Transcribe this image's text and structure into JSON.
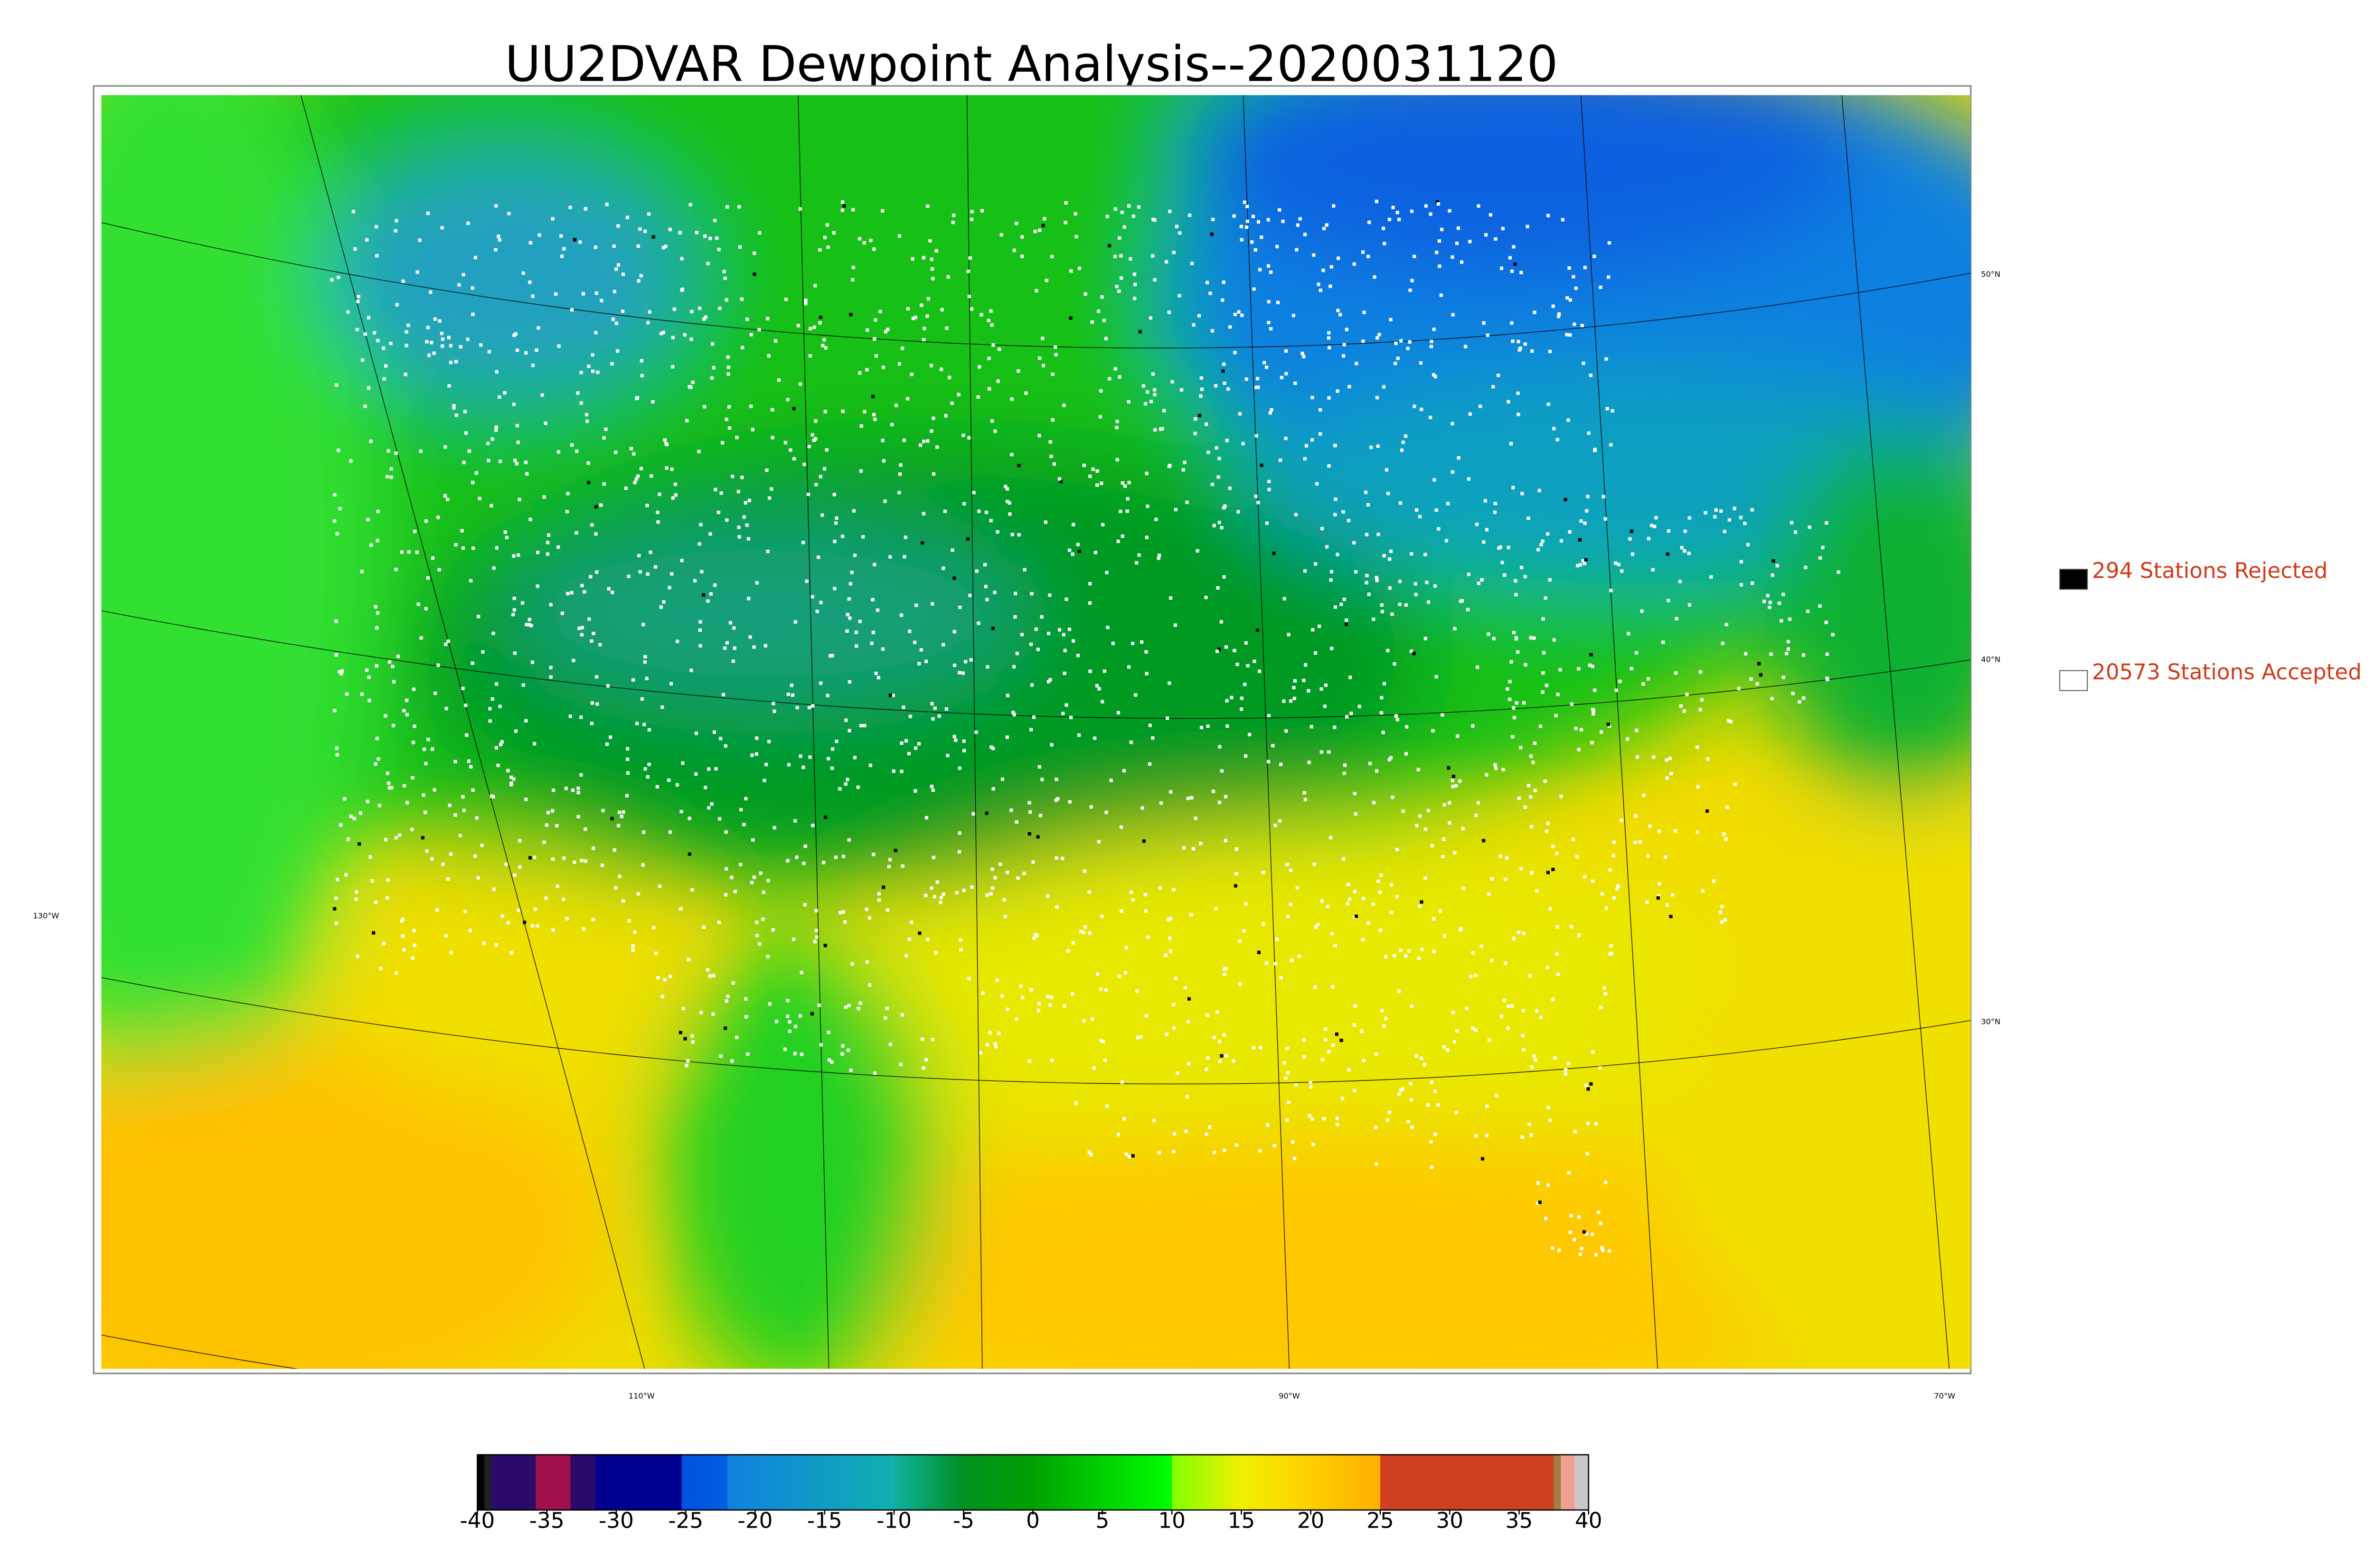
{
  "title": "UU2DVAR Dewpoint Analysis--2020031120",
  "legend": [
    {
      "label": "294 Stations Rejected",
      "color": "#000000"
    },
    {
      "label": "20573 Stations Accepted",
      "color": "#ffffff"
    }
  ],
  "graticule_labels": {
    "left": [
      "130°W"
    ],
    "right": [
      "50°N",
      "40°N",
      "30°N"
    ],
    "bottom": [
      "110°W",
      "90°W",
      "70°W"
    ]
  },
  "colorbar": {
    "lim": [
      -40,
      40
    ],
    "ticks": [
      -40,
      -35,
      -30,
      -25,
      -20,
      -15,
      -10,
      -5,
      0,
      5,
      10,
      15,
      20,
      25,
      30,
      35,
      40
    ],
    "segments": [
      {
        "from": -40,
        "to": -39.5,
        "color_start": "#000000",
        "color_end": "#000000"
      },
      {
        "from": -39.5,
        "to": -39,
        "color_start": "#202020",
        "color_end": "#202020"
      },
      {
        "from": -39,
        "to": -35.8,
        "color_start": "#2a0a6a",
        "color_end": "#2a0a6a"
      },
      {
        "from": -35.8,
        "to": -33.3,
        "color_start": "#a0104a",
        "color_end": "#a0104a"
      },
      {
        "from": -33.3,
        "to": -31.5,
        "color_start": "#2a0a6a",
        "color_end": "#2a0a6a"
      },
      {
        "from": -31.5,
        "to": -25.3,
        "color_start": "#000090",
        "color_end": "#000090"
      },
      {
        "from": -25.3,
        "to": -22,
        "color_start": "#0050e0",
        "color_end": "#0060e0"
      },
      {
        "from": -22,
        "to": -10,
        "color_start": "#1080e0",
        "color_end": "#10b0b0"
      },
      {
        "from": -10,
        "to": -5,
        "color_start": "#10b0a0",
        "color_end": "#009020"
      },
      {
        "from": -5,
        "to": 0,
        "color_start": "#009020",
        "color_end": "#00a000"
      },
      {
        "from": 0,
        "to": 10,
        "color_start": "#00a000",
        "color_end": "#00ff00"
      },
      {
        "from": 10,
        "to": 15,
        "color_start": "#80ff00",
        "color_end": "#f0f000"
      },
      {
        "from": 15,
        "to": 20,
        "color_start": "#f0f000",
        "color_end": "#ffd000"
      },
      {
        "from": 20,
        "to": 25,
        "color_start": "#ffd000",
        "color_end": "#ffb000"
      },
      {
        "from": 25,
        "to": 37.5,
        "color_start": "#d04020",
        "color_end": "#d04020"
      },
      {
        "from": 37.5,
        "to": 38,
        "color_start": "#a08040",
        "color_end": "#a08040"
      },
      {
        "from": 38,
        "to": 39,
        "color_start": "#f0a090",
        "color_end": "#f0a090"
      },
      {
        "from": 39,
        "to": 40,
        "color_start": "#c8c8c8",
        "color_end": "#c8c8c8"
      }
    ]
  }
}
